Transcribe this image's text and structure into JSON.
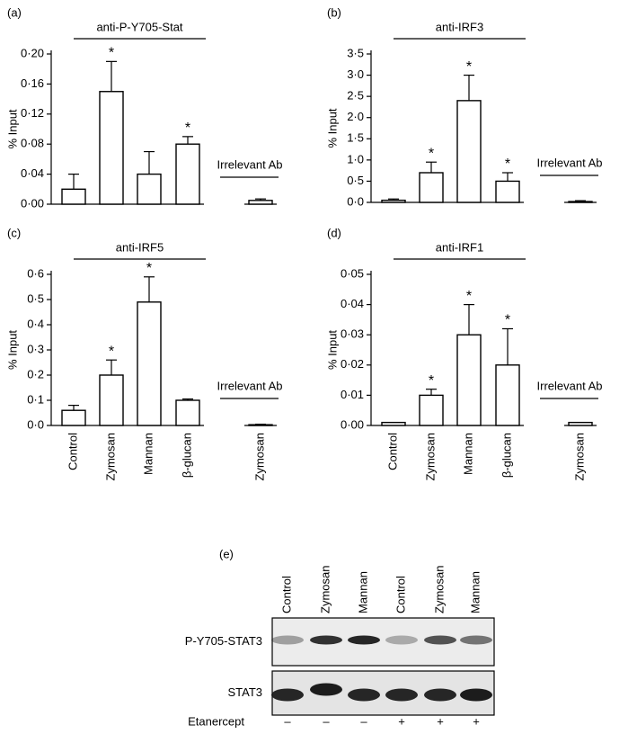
{
  "chart_data": [
    {
      "type": "bar",
      "panel": "(a)",
      "title": "anti-P-Y705-Stat",
      "group_label": "Irrelevant Ab",
      "y_label": "% Input",
      "categories": [
        null,
        null,
        null,
        null,
        null
      ],
      "values": [
        0.02,
        0.15,
        0.04,
        0.08,
        0.005
      ],
      "errors": [
        0.02,
        0.04,
        0.03,
        0.01,
        0.002
      ],
      "markers": [
        null,
        "*",
        null,
        "*",
        null
      ],
      "color": "#000000",
      "ylim": [
        0,
        0.2
      ],
      "yticks": [
        {
          "value": 0,
          "label": "0·00"
        },
        {
          "value": 0.04,
          "label": "0·04"
        },
        {
          "value": 0.08,
          "label": "0·08"
        },
        {
          "value": 0.12,
          "label": "0·12"
        },
        {
          "value": 0.16,
          "label": "0·16"
        },
        {
          "value": 0.2,
          "label": "0·20"
        }
      ]
    },
    {
      "type": "bar",
      "panel": "(b)",
      "title": "anti-IRF3",
      "group_label": "Irrelevant Ab",
      "y_label": "% Input",
      "categories": [
        null,
        null,
        null,
        null,
        null
      ],
      "values": [
        0.05,
        0.7,
        2.4,
        0.5,
        0.02
      ],
      "errors": [
        0.03,
        0.25,
        0.6,
        0.2,
        0.02
      ],
      "markers": [
        null,
        "*",
        "*",
        "*",
        null
      ],
      "color": "#000000",
      "ylim": [
        0,
        3.5
      ],
      "yticks": [
        {
          "value": 0,
          "label": "0·0"
        },
        {
          "value": 0.5,
          "label": "0·5"
        },
        {
          "value": 1,
          "label": "1·0"
        },
        {
          "value": 1.5,
          "label": "1·5"
        },
        {
          "value": 2,
          "label": "2·0"
        },
        {
          "value": 2.5,
          "label": "2·5"
        },
        {
          "value": 3,
          "label": "3·0"
        },
        {
          "value": 3.5,
          "label": "3·5"
        }
      ]
    },
    {
      "type": "bar",
      "panel": "(c)",
      "title": "anti-IRF5",
      "group_label": "Irrelevant Ab",
      "y_label": "% Input",
      "categories": [
        "Control",
        "Zymosan",
        "Mannan",
        "β-glucan",
        "Zymosan"
      ],
      "values": [
        0.06,
        0.2,
        0.49,
        0.1,
        0.003
      ],
      "errors": [
        0.02,
        0.06,
        0.1,
        0.005,
        0.002
      ],
      "markers": [
        null,
        "*",
        "*",
        null,
        null
      ],
      "color": "#000000",
      "ylim": [
        0,
        0.6
      ],
      "yticks": [
        {
          "value": 0,
          "label": "0·0"
        },
        {
          "value": 0.1,
          "label": "0·1"
        },
        {
          "value": 0.2,
          "label": "0·2"
        },
        {
          "value": 0.3,
          "label": "0·3"
        },
        {
          "value": 0.4,
          "label": "0·4"
        },
        {
          "value": 0.5,
          "label": "0·5"
        },
        {
          "value": 0.6,
          "label": "0·6"
        }
      ]
    },
    {
      "type": "bar",
      "panel": "(d)",
      "title": "anti-IRF1",
      "group_label": "Irrelevant Ab",
      "y_label": "% Input",
      "categories": [
        "Control",
        "Zymosan",
        "Mannan",
        "β-glucan",
        "Zymosan"
      ],
      "values": [
        0.001,
        0.01,
        0.03,
        0.02,
        0.001
      ],
      "errors": [
        0,
        0.002,
        0.01,
        0.012,
        0
      ],
      "markers": [
        null,
        "*",
        "*",
        "*",
        null
      ],
      "color": "#000000",
      "ylim": [
        0,
        0.05
      ],
      "yticks": [
        {
          "value": 0,
          "label": "0·00"
        },
        {
          "value": 0.01,
          "label": "0·01"
        },
        {
          "value": 0.02,
          "label": "0·02"
        },
        {
          "value": 0.03,
          "label": "0·03"
        },
        {
          "value": 0.04,
          "label": "0·04"
        },
        {
          "value": 0.05,
          "label": "0·05"
        }
      ]
    }
  ],
  "blot": {
    "panel": "(e)",
    "columns": [
      "Control",
      "Zymosan",
      "Mannan",
      "Control",
      "Zymosan",
      "Mannan"
    ],
    "rows": [
      "P-Y705-STAT3",
      "STAT3"
    ],
    "treatment": {
      "label": "Etanercept",
      "signs": [
        "–",
        "–",
        "–",
        "+",
        "+",
        "+"
      ]
    }
  }
}
